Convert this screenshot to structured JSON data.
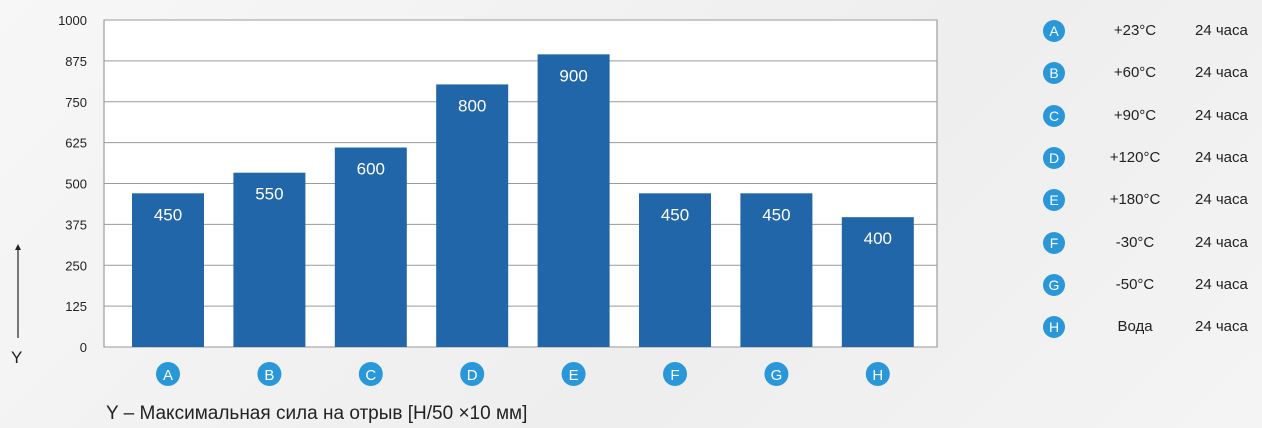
{
  "chart_data": {
    "type": "bar",
    "categories": [
      "A",
      "B",
      "C",
      "D",
      "E",
      "F",
      "G",
      "H"
    ],
    "values": [
      450,
      550,
      600,
      800,
      900,
      450,
      450,
      400
    ],
    "value_labels": [
      "450",
      "550",
      "600",
      "800",
      "900",
      "450",
      "450",
      "400"
    ],
    "data_scale_values": [
      470,
      533,
      610,
      803,
      895,
      470,
      470,
      397
    ],
    "yticks": [
      "0",
      "125",
      "250",
      "375",
      "500",
      "625",
      "750",
      "875",
      "1000"
    ],
    "ylim": [
      0,
      1000
    ],
    "ylabel_letter": "Y",
    "caption": "Y – Максимальная сила на отрыв [Н/50 ×10 мм]",
    "grid": true,
    "bar_color": "#2166a8",
    "badge_color": "#2a98d8"
  },
  "legend": [
    {
      "letter": "A",
      "temp": "+23°C",
      "duration": "24 часа"
    },
    {
      "letter": "B",
      "temp": "+60°C",
      "duration": "24 часа"
    },
    {
      "letter": "C",
      "temp": "+90°C",
      "duration": "24 часа"
    },
    {
      "letter": "D",
      "temp": "+120°C",
      "duration": "24 часа"
    },
    {
      "letter": "E",
      "temp": "+180°C",
      "duration": "24 часа"
    },
    {
      "letter": "F",
      "temp": "-30°C",
      "duration": "24 часа"
    },
    {
      "letter": "G",
      "temp": "-50°C",
      "duration": "24 часа"
    },
    {
      "letter": "H",
      "temp": "Вода",
      "duration": "24 часа"
    }
  ]
}
